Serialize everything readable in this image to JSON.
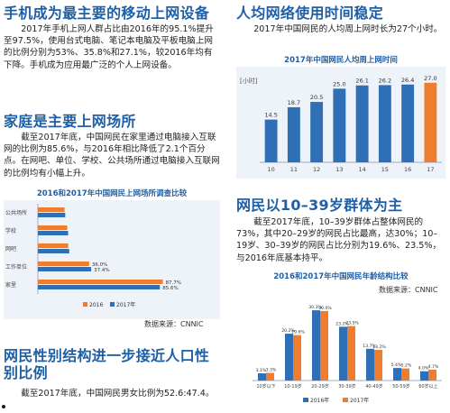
{
  "left": {
    "s1": {
      "heading": "手机成为最主要的移动上网设备",
      "body": "2017年手机上网人群占比由2016年的95.1%提升至97.5%，使用台式电脑、笔记本电脑及平板电脑上网的比例分别为53%、35.8%和27.1%，较2016年均有下降。手机成为应用最广泛的个人上网设备。"
    },
    "s2": {
      "heading": "家庭是主要上网场所",
      "body": "截至2017年底，中国网民在家里通过电脑接入互联网的比例为85.6%，与2016年相比降低了2.1个百分点。在网吧、单位、学校、公共场所通过电脑接入互联网的比例均有小幅上升。",
      "source": "数据来源：CNNIC"
    },
    "s3": {
      "heading": "网民性别结构进一步接近人口性别比例",
      "body": "截至2017年底，中国网民男女比例为52.6:47.4。"
    }
  },
  "right": {
    "s1": {
      "heading": "人均网络使用时间稳定",
      "body": "2017年中国网民的人均周上网时长为27个小时。"
    },
    "s2": {
      "heading": "网民以10–39岁群体为主",
      "body": "截至2017年底，10–39岁群体占整体网民的73%，其中20–29岁的网民占比最高，达30%；10–19岁、30–39岁的网民占比分别为19.6%、23.5%，与2016年底基本持平。",
      "source": "数据来源：CNNIC"
    }
  },
  "colors": {
    "blue": "#2e6fb5",
    "orange": "#ee7d2f",
    "heading": "#1f5fa6"
  },
  "chart_data": [
    {
      "id": "weekly_hours",
      "type": "bar",
      "title": "2017年中国网民人均周上网时间",
      "ylabel": "小时",
      "categories": [
        "10",
        "11",
        "12",
        "13",
        "14",
        "15",
        "16",
        "17"
      ],
      "values": [
        14.5,
        18.7,
        20.5,
        25.0,
        26.1,
        26.2,
        26.4,
        27.0
      ],
      "value_labels": [
        "14.5",
        "18.7",
        "20.5",
        "25.0",
        "26.1",
        "26.2",
        "26.4",
        "27.0"
      ],
      "ylim": [
        0,
        30
      ]
    },
    {
      "id": "access_places",
      "type": "bar",
      "orientation": "horizontal",
      "title": "2016和2017年中国网民上网场所调查比较",
      "categories": [
        "公共场所",
        "学校",
        "网吧",
        "工作单位",
        "家里"
      ],
      "series": [
        {
          "name": "2016",
          "values": [
            18.7,
            20.6,
            21.3,
            36.0,
            87.7
          ],
          "labels": [
            "",
            "",
            "",
            "36.0%",
            "87.7%"
          ]
        },
        {
          "name": "2017",
          "values": [
            19.2,
            21.2,
            22.0,
            37.4,
            85.6
          ],
          "labels": [
            "",
            "",
            "",
            "37.4%",
            "85.6%"
          ]
        }
      ],
      "legend": [
        "2016",
        "2017年"
      ],
      "xlim": [
        0,
        100
      ]
    },
    {
      "id": "age_structure",
      "type": "bar",
      "title": "2016和2017年中国网民年龄结构比较",
      "categories": [
        "10岁以下",
        "10-19岁",
        "20-29岁",
        "30-39岁",
        "40-49岁",
        "50-59岁",
        "60岁以上"
      ],
      "series": [
        {
          "name": "2016年",
          "values": [
            3.1,
            20.2,
            30.3,
            23.2,
            13.7,
            5.4,
            4.0
          ],
          "labels": [
            "3.1%",
            "20.2%",
            "30.3%",
            "23.2%",
            "13.7%",
            "5.4%",
            "4.0%"
          ]
        },
        {
          "name": "2017年",
          "values": [
            3.3,
            19.6,
            30.0,
            23.5,
            13.2,
            5.2,
            4.7
          ],
          "labels": [
            "3.3%",
            "19.6%",
            "30.0%",
            "23.5%",
            "13.2%",
            "5.2%",
            "4.7%"
          ]
        }
      ],
      "ylim": [
        0,
        35
      ]
    }
  ]
}
